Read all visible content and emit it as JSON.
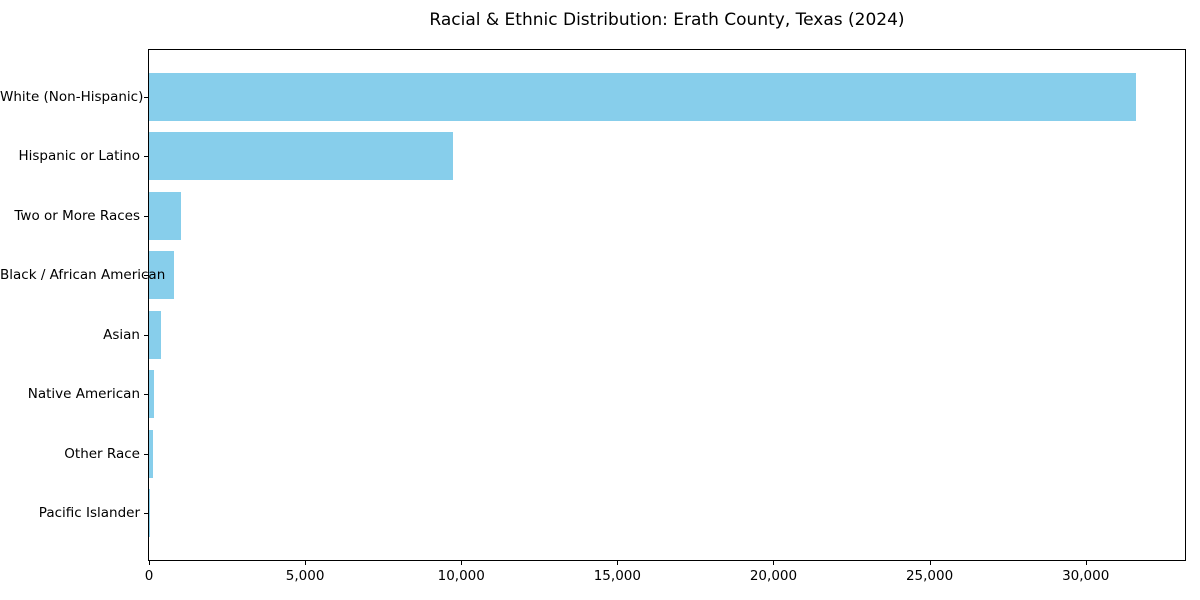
{
  "chart_data": {
    "type": "bar",
    "orientation": "horizontal",
    "title": "Racial & Ethnic Distribution: Erath County, Texas (2024)",
    "categories": [
      "White (Non-Hispanic)",
      "Hispanic or Latino",
      "Two or More Races",
      "Black / African American",
      "Asian",
      "Native American",
      "Other Race",
      "Pacific Islander"
    ],
    "values": [
      31600,
      9750,
      1020,
      800,
      400,
      165,
      130,
      20
    ],
    "bar_color": "#87CEEB",
    "xlabel": "",
    "ylabel": "",
    "xlim": [
      0,
      33180
    ],
    "x_ticks": [
      0,
      5000,
      10000,
      15000,
      20000,
      25000,
      30000
    ],
    "x_tick_labels": [
      "0",
      "5,000",
      "10,000",
      "15,000",
      "20,000",
      "25,000",
      "30,000"
    ],
    "grid": false,
    "legend": null,
    "background_color": "#ffffff",
    "text_color": "#000000"
  }
}
